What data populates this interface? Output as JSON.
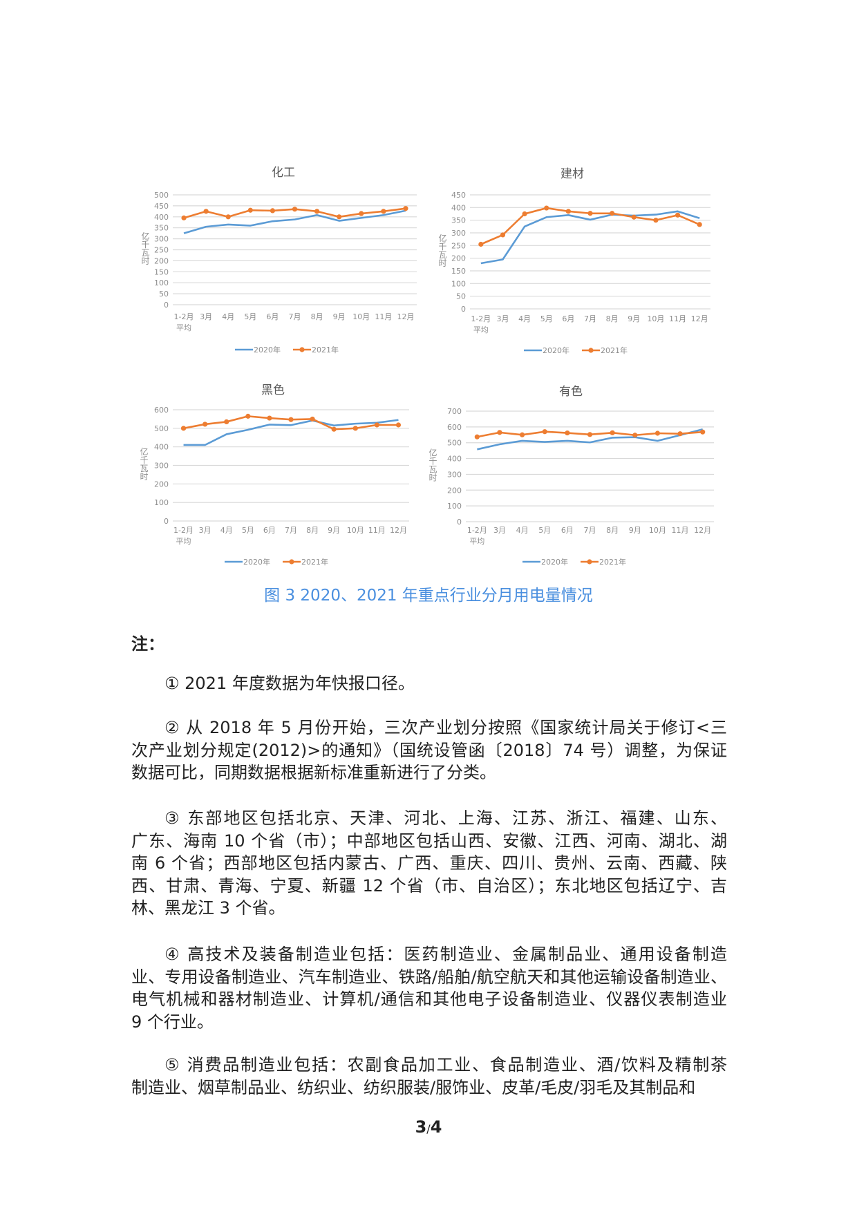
{
  "chart_data": [
    {
      "type": "line",
      "title": "化工",
      "ylabel": "亿千瓦时",
      "ylim": [
        0,
        500
      ],
      "yticks": [
        0,
        50,
        100,
        150,
        200,
        250,
        300,
        350,
        400,
        450,
        500
      ],
      "categories": [
        "1-2月\n平均",
        "3月",
        "4月",
        "5月",
        "6月",
        "7月",
        "8月",
        "9月",
        "10月",
        "11月",
        "12月"
      ],
      "grid": true,
      "legend": "bottom",
      "series": [
        {
          "name": "2020年",
          "color": "#5b9bd5",
          "markers": false,
          "values": [
            325,
            355,
            365,
            360,
            380,
            388,
            408,
            382,
            395,
            408,
            428
          ]
        },
        {
          "name": "2021年",
          "color": "#ed7d31",
          "markers": true,
          "values": [
            395,
            425,
            400,
            430,
            428,
            435,
            425,
            400,
            415,
            425,
            438
          ]
        }
      ]
    },
    {
      "type": "line",
      "title": "建材",
      "ylabel": "亿千瓦时",
      "ylim": [
        0,
        450
      ],
      "yticks": [
        0,
        50,
        100,
        150,
        200,
        250,
        300,
        350,
        400,
        450
      ],
      "categories": [
        "1-2月\n平均",
        "3月",
        "4月",
        "5月",
        "6月",
        "7月",
        "8月",
        "9月",
        "10月",
        "11月",
        "12月"
      ],
      "grid": true,
      "legend": "bottom",
      "series": [
        {
          "name": "2020年",
          "color": "#5b9bd5",
          "markers": false,
          "values": [
            180,
            195,
            325,
            362,
            370,
            352,
            372,
            368,
            372,
            385,
            358
          ]
        },
        {
          "name": "2021年",
          "color": "#ed7d31",
          "markers": true,
          "values": [
            255,
            292,
            375,
            398,
            385,
            377,
            377,
            362,
            350,
            370,
            333
          ]
        }
      ]
    },
    {
      "type": "line",
      "title": "黑色",
      "ylabel": "亿千瓦时",
      "ylim": [
        0,
        600
      ],
      "yticks": [
        0,
        100,
        200,
        300,
        400,
        500,
        600
      ],
      "categories": [
        "1-2月\n平均",
        "3月",
        "4月",
        "5月",
        "6月",
        "7月",
        "8月",
        "9月",
        "10月",
        "11月",
        "12月"
      ],
      "grid": true,
      "legend": "bottom",
      "series": [
        {
          "name": "2020年",
          "color": "#5b9bd5",
          "markers": false,
          "values": [
            410,
            410,
            468,
            492,
            520,
            517,
            542,
            515,
            525,
            530,
            545
          ]
        },
        {
          "name": "2021年",
          "color": "#ed7d31",
          "markers": true,
          "values": [
            500,
            522,
            535,
            565,
            555,
            547,
            550,
            495,
            500,
            518,
            518
          ]
        }
      ]
    },
    {
      "type": "line",
      "title": "有色",
      "ylabel": "亿千瓦时",
      "ylim": [
        0,
        700
      ],
      "yticks": [
        0,
        100,
        200,
        300,
        400,
        500,
        600,
        700
      ],
      "categories": [
        "1-2月\n平均",
        "3月",
        "4月",
        "5月",
        "6月",
        "7月",
        "8月",
        "9月",
        "10月",
        "11月",
        "12月"
      ],
      "grid": true,
      "legend": "bottom",
      "series": [
        {
          "name": "2020年",
          "color": "#5b9bd5",
          "markers": false,
          "values": [
            458,
            490,
            512,
            505,
            512,
            502,
            532,
            535,
            512,
            548,
            585
          ]
        },
        {
          "name": "2021年",
          "color": "#ed7d31",
          "markers": true,
          "values": [
            537,
            565,
            550,
            570,
            562,
            552,
            563,
            548,
            560,
            557,
            568
          ]
        }
      ]
    }
  ],
  "figure_caption": "图 3  2020、2021 年重点行业分月用电量情况",
  "notes": {
    "title": "注：",
    "items": [
      {
        "lines": [
          "①   2021 年度数据为年快报口径。"
        ]
      },
      {
        "lines": [
          "②   从 2018 年 5 月份开始，三次产业划分按照《国家统计局关于修订<三",
          "次产业划分规定(2012)>的通知》（国统设管函〔2018〕74 号）调整，为保证",
          "数据可比，同期数据根据新标准重新进行了分类。"
        ]
      },
      {
        "lines": [
          "③   东部地区包括北京、天津、河北、上海、江苏、浙江、福建、山东、",
          "广东、海南 10 个省（市）；中部地区包括山西、安徽、江西、河南、湖北、湖",
          "南 6 个省；西部地区包括内蒙古、广西、重庆、四川、贵州、云南、西藏、陕",
          "西、甘肃、青海、宁夏、新疆 12 个省（市、自治区）；东北地区包括辽宁、吉",
          "林、黑龙江 3 个省。"
        ]
      },
      {
        "lines": [
          "④   高技术及装备制造业包括：医药制造业、金属制品业、通用设备制造",
          "业、专用设备制造业、汽车制造业、铁路/船舶/航空航天和其他运输设备制造业、",
          "电气机械和器材制造业、计算机/通信和其他电子设备制造业、仪器仪表制造业",
          "9 个行业。"
        ]
      },
      {
        "lines": [
          "⑤   消费品制造业包括：农副食品加工业、食品制造业、酒/饮料及精制茶",
          "制造业、烟草制品业、纺织业、纺织服装/服饰业、皮革/毛皮/羽毛及其制品和"
        ]
      }
    ]
  },
  "page": {
    "current": "3",
    "separator": "/",
    "total": "4"
  }
}
